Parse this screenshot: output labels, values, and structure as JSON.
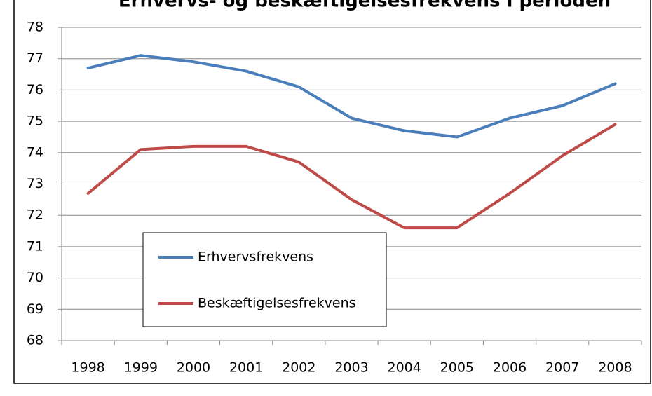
{
  "chart_data": {
    "type": "line",
    "title": "Erhvervs- og beskæftigelsesfrekvens i perioden",
    "categories": [
      "1998",
      "1999",
      "2000",
      "2001",
      "2002",
      "2003",
      "2004",
      "2005",
      "2006",
      "2007",
      "2008"
    ],
    "series": [
      {
        "name": "Erhvervsfrekvens",
        "color": "#4a7ebb",
        "values": [
          76.7,
          77.1,
          76.9,
          76.6,
          76.1,
          75.1,
          74.7,
          74.5,
          75.1,
          75.5,
          76.2
        ]
      },
      {
        "name": "Beskæftigelsesfrekvens",
        "color": "#be4b48",
        "values": [
          72.7,
          74.1,
          74.2,
          74.2,
          73.7,
          72.5,
          71.6,
          71.6,
          72.7,
          73.9,
          74.9
        ]
      }
    ],
    "ylim": [
      68,
      78
    ],
    "yticks": [
      68,
      69,
      70,
      71,
      72,
      73,
      74,
      75,
      76,
      77,
      78
    ],
    "grid": true
  }
}
